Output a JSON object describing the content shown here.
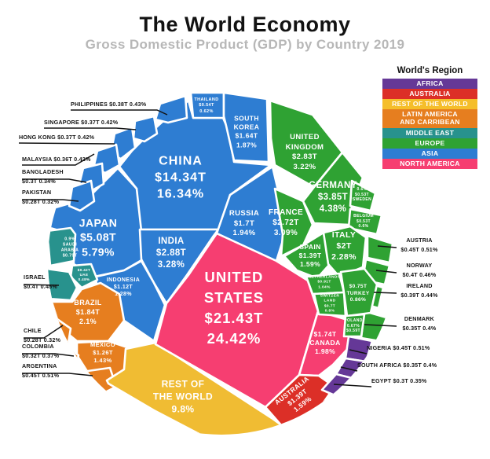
{
  "header": {
    "title": "The World Economy",
    "subtitle": "Gross Domestic Product (GDP) by Country 2019"
  },
  "legend": {
    "title": "World's Region",
    "items": [
      {
        "id": "africa",
        "label": "AFRICA",
        "color": "#653897"
      },
      {
        "id": "australia",
        "label": "AUSTRALIA",
        "color": "#DC2F27"
      },
      {
        "id": "rest_of_the_world",
        "label": "REST OF THE WORLD",
        "color": "#F5BE2A"
      },
      {
        "id": "latin_america",
        "label": "LATIN AMERICA AND CARRIBEAN",
        "color": "#E67E1F"
      },
      {
        "id": "middle_east",
        "label": "MIDDLE EAST",
        "color": "#28928D"
      },
      {
        "id": "europe",
        "label": "EUROPE",
        "color": "#2FA233"
      },
      {
        "id": "asia",
        "label": "ASIA",
        "color": "#2E7DD2"
      },
      {
        "id": "north_america",
        "label": "NORTH AMERICA",
        "color": "#F63E71"
      }
    ]
  },
  "chart_data": {
    "type": "voronoi_circle_treemap",
    "title": "The World Economy",
    "subtitle": "Gross Domestic Product (GDP) by Country 2019",
    "unit": "USD trillions",
    "legend_position": "top-right",
    "region_colors": {
      "asia": "#2E7DD2",
      "europe": "#2FA233",
      "north_america": "#F63E71",
      "latin_america": "#E67E1F",
      "middle_east": "#28928D",
      "africa": "#653897",
      "australia": "#DC2F27",
      "rest_of_the_world": "#F0BC33"
    },
    "countries": {
      "united_states": {
        "name": "UNITED STATES",
        "gdp": "$21.43T",
        "share": "24.42%",
        "region": "north_america",
        "cell_lines": [
          "UNITED",
          "STATES",
          "$21.43T",
          "24.42%"
        ]
      },
      "china": {
        "name": "CHINA",
        "gdp": "$14.34T",
        "share": "16.34%",
        "region": "asia",
        "cell_lines": [
          "CHINA",
          "$14.34T",
          "16.34%"
        ]
      },
      "japan": {
        "name": "JAPAN",
        "gdp": "$5.08T",
        "share": "5.79%",
        "region": "asia",
        "cell_lines": [
          "JAPAN",
          "$5.08T",
          "5.79%"
        ]
      },
      "germany": {
        "name": "GERMANY",
        "gdp": "$3.85T",
        "share": "4.38%",
        "region": "europe",
        "cell_lines": [
          "GERMANY",
          "$3.85T",
          "4.38%"
        ]
      },
      "india": {
        "name": "INDIA",
        "gdp": "$2.88T",
        "share": "3.28%",
        "region": "asia",
        "cell_lines": [
          "INDIA",
          "$2.88T",
          "3.28%"
        ]
      },
      "united_kingdom": {
        "name": "UNITED KINGDOM",
        "gdp": "$2.83T",
        "share": "3.22%",
        "region": "europe",
        "cell_lines": [
          "UNITED",
          "KINGDOM",
          "$2.83T",
          "3.22%"
        ]
      },
      "france": {
        "name": "FRANCE",
        "gdp": "$2.72T",
        "share": "3.09%",
        "region": "europe",
        "cell_lines": [
          "FRANCE",
          "$2.72T",
          "3.09%"
        ]
      },
      "italy": {
        "name": "ITALY",
        "gdp": "$2T",
        "share": "2.28%",
        "region": "europe",
        "cell_lines": [
          "ITALY",
          "$2T",
          "2.28%"
        ]
      },
      "brazil": {
        "name": "BRAZIL",
        "gdp": "$1.84T",
        "share": "2.1%",
        "region": "latin_america",
        "cell_lines": [
          "BRAZIL",
          "$1.84T",
          "2.1%"
        ]
      },
      "canada": {
        "name": "CANADA",
        "gdp": "$1.74T",
        "share": "1.98%",
        "region": "north_america",
        "cell_lines": [
          "$1.74T",
          "CANADA",
          "1.98%"
        ]
      },
      "russia": {
        "name": "RUSSIA",
        "gdp": "$1.7T",
        "share": "1.94%",
        "region": "asia",
        "cell_lines": [
          "RUSSIA",
          "$1.7T",
          "1.94%"
        ]
      },
      "south_korea": {
        "name": "SOUTH KOREA",
        "gdp": "$1.64T",
        "share": "1.87%",
        "region": "asia",
        "cell_lines": [
          "SOUTH",
          "KOREA",
          "$1.64T",
          "1.87%"
        ]
      },
      "spain": {
        "name": "SPAIN",
        "gdp": "$1.39T",
        "share": "1.59%",
        "region": "europe",
        "cell_lines": [
          "SPAIN",
          "$1.39T",
          "1.59%"
        ]
      },
      "australia": {
        "name": "AUSTRALIA",
        "gdp": "$1.39T",
        "share": "1.59%",
        "region": "australia",
        "cell_lines": [
          "AUSTRALIA",
          "$1.39T",
          "1.59%"
        ]
      },
      "mexico": {
        "name": "MEXICO",
        "gdp": "$1.26T",
        "share": "1.43%",
        "region": "latin_america",
        "cell_lines": [
          "MEXICO",
          "$1.26T",
          "1.43%"
        ]
      },
      "indonesia": {
        "name": "INDONESIA",
        "gdp": "$1.12T",
        "share": "1.28%",
        "region": "asia",
        "cell_lines": [
          "INDONESIA",
          "$1.12T",
          "1.28%"
        ]
      },
      "netherlands": {
        "name": "NETHERLANDS",
        "gdp": "$0.91T",
        "share": "1.04%",
        "region": "europe",
        "cell_lines": [
          "NETHERLANDS",
          "$0.91T",
          "1.04%"
        ]
      },
      "saudi_arabia": {
        "name": "SAUDI ARABIA",
        "gdp": "$0.79T",
        "share": "0.9%",
        "region": "middle_east",
        "cell_lines": [
          "0.9%",
          "SAUDI",
          "ARABIA",
          "$0.79T"
        ]
      },
      "turkey": {
        "name": "TURKEY",
        "gdp": "$0.75T",
        "share": "0.86%",
        "region": "europe",
        "cell_lines": [
          "$0.75T",
          "TURKEY",
          "0.86%"
        ]
      },
      "switzerland": {
        "name": "SWITZERLAND",
        "gdp": "$0.7T",
        "share": "0.8%",
        "region": "europe",
        "cell_lines": [
          "SWITZER",
          "LAND",
          "$0.7T",
          "0.8%"
        ]
      },
      "poland": {
        "name": "POLAND",
        "gdp": "$0.59T",
        "share": "0.67%",
        "region": "europe",
        "cell_lines": [
          "POLAND",
          "0.67%",
          "$0.59T"
        ]
      },
      "thailand": {
        "name": "THAILAND",
        "gdp": "$0.54T",
        "share": "0.62%",
        "region": "asia",
        "cell_lines": [
          "THAILAND",
          "$0.54T",
          "0.62%"
        ]
      },
      "sweden": {
        "name": "SWEDEN",
        "gdp": "$0.53T",
        "share": "0.6%",
        "region": "europe",
        "cell_lines": [
          "0.6%",
          "$0.53T",
          "SWEDEN"
        ]
      },
      "belgium": {
        "name": "BELGIUM",
        "gdp": "$0.53T",
        "share": "0.6%",
        "region": "europe",
        "cell_lines": [
          "BELGIUM",
          "$0.53T",
          "0.6%"
        ]
      },
      "uae": {
        "name": "UAE",
        "gdp": "$0.42T",
        "share": "0.48%",
        "region": "middle_east",
        "cell_lines": [
          "$0.42T",
          "UAE",
          "0.48%"
        ]
      },
      "rest_of_world": {
        "name": "REST OF THE WORLD",
        "gdp": "",
        "share": "9.8%",
        "region": "rest_of_the_world",
        "cell_lines": [
          "REST OF",
          "THE WORLD",
          "9.8%"
        ]
      },
      "philippines": {
        "name": "PHILIPPINES",
        "gdp": "$0.38T",
        "share": "0.43%",
        "region": "asia",
        "callout_lines": [
          "PHILIPPINES $0.38T  0.43%"
        ]
      },
      "singapore": {
        "name": "SINGAPORE",
        "gdp": "$0.37T",
        "share": "0.42%",
        "region": "asia",
        "callout_lines": [
          "SINGAPORE $0.37T  0.42%"
        ]
      },
      "hong_kong": {
        "name": "HONG KONG",
        "gdp": "$0.37T",
        "share": "0.42%",
        "region": "asia",
        "callout_lines": [
          "HONG KONG  $0.37T  0.42%"
        ]
      },
      "malaysia": {
        "name": "MALAYSIA",
        "gdp": "$0.36T",
        "share": "0.42%",
        "region": "asia",
        "callout_lines": [
          "MALAYSIA $0.36T 0.42%"
        ]
      },
      "bangladesh": {
        "name": "BANGLADESH",
        "gdp": "$0.3T",
        "share": "0.34%",
        "region": "asia",
        "callout_lines": [
          "BANGLADESH",
          "$0.3T  0.34%"
        ]
      },
      "pakistan": {
        "name": "PAKISTAN",
        "gdp": "$0.28T",
        "share": "0.32%",
        "region": "asia",
        "callout_lines": [
          "PAKISTAN",
          "$0.28T  0.32%"
        ]
      },
      "israel": {
        "name": "ISRAEL",
        "gdp": "$0.4T",
        "share": "0.45%",
        "region": "middle_east",
        "callout_lines": [
          "ISRAEL",
          "$0.4T 0.45%"
        ]
      },
      "chile": {
        "name": "CHILE",
        "gdp": "$0.28T",
        "share": "0.32%",
        "region": "latin_america",
        "callout_lines": [
          "CHILE",
          "$0.28T  0.32%"
        ]
      },
      "colombia": {
        "name": "COLOMBIA",
        "gdp": "$0.32T",
        "share": "0.37%",
        "region": "latin_america",
        "callout_lines": [
          "COLOMBIA",
          "$0.32T 0.37%"
        ]
      },
      "argentina": {
        "name": "ARGENTINA",
        "gdp": "$0.45T",
        "share": "0.51%",
        "region": "latin_america",
        "callout_lines": [
          "ARGENTINA",
          "$0.45T 0.51%"
        ]
      },
      "austria": {
        "name": "AUSTRIA",
        "gdp": "$0.45T",
        "share": "0.51%",
        "region": "europe",
        "callout_lines": [
          "AUSTRIA",
          "$0.45T 0.51%"
        ]
      },
      "norway": {
        "name": "NORWAY",
        "gdp": "$0.4T",
        "share": "0.46%",
        "region": "europe",
        "callout_lines": [
          "NORWAY",
          "$0.4T 0.46%"
        ]
      },
      "ireland": {
        "name": "IRELAND",
        "gdp": "$0.39T",
        "share": "0.44%",
        "region": "europe",
        "callout_lines": [
          "IRELAND",
          "$0.39T 0.44%"
        ]
      },
      "denmark": {
        "name": "DENMARK",
        "gdp": "$0.35T",
        "share": "0.4%",
        "region": "europe",
        "callout_lines": [
          "DENMARK",
          "$0.35T 0.4%"
        ]
      },
      "nigeria": {
        "name": "NIGERIA",
        "gdp": "$0.45T",
        "share": "0.51%",
        "region": "africa",
        "callout_lines": [
          "NIGERIA $0.45T 0.51%"
        ]
      },
      "south_africa": {
        "name": "SOUTH AFRICA",
        "gdp": "$0.35T",
        "share": "0.4%",
        "region": "africa",
        "callout_lines": [
          "SOUTH AFRICA $0.35T 0.4%"
        ]
      },
      "egypt": {
        "name": "EGYPT",
        "gdp": "$0.3T",
        "share": "0.35%",
        "region": "africa",
        "callout_lines": [
          "EGYPT $0.3T  0.35%"
        ]
      }
    }
  }
}
